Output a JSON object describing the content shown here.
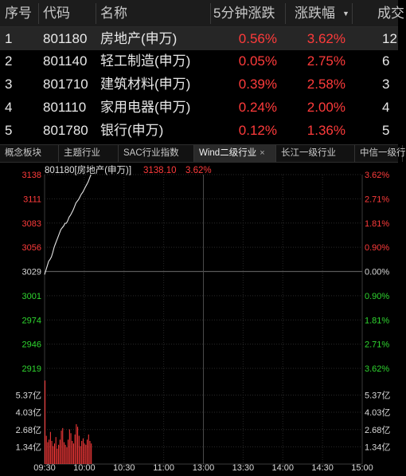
{
  "table": {
    "headers": {
      "index": "序号",
      "code": "代码",
      "name": "名称",
      "chg5": "5分钟涨跌",
      "pct": "涨跌幅",
      "clipped": "成交"
    },
    "rows": [
      {
        "index": "1",
        "code": "801180",
        "name": "房地产(申万)",
        "chg5": "0.56%",
        "pct": "3.62%",
        "clipped": "12",
        "selected": true
      },
      {
        "index": "2",
        "code": "801140",
        "name": "轻工制造(申万)",
        "chg5": "0.05%",
        "pct": "2.75%",
        "clipped": "6"
      },
      {
        "index": "3",
        "code": "801710",
        "name": "建筑材料(申万)",
        "chg5": "0.39%",
        "pct": "2.58%",
        "clipped": "3"
      },
      {
        "index": "4",
        "code": "801110",
        "name": "家用电器(申万)",
        "chg5": "0.24%",
        "pct": "2.00%",
        "clipped": "4"
      },
      {
        "index": "5",
        "code": "801780",
        "name": "银行(申万)",
        "chg5": "0.12%",
        "pct": "1.36%",
        "clipped": "5"
      }
    ]
  },
  "tabs": [
    {
      "label": "概念板块"
    },
    {
      "label": "主题行业"
    },
    {
      "label": "SAC行业指数"
    },
    {
      "label": "Wind二级行业",
      "active": true,
      "close": "×"
    },
    {
      "label": "长江一级行业"
    },
    {
      "label": "中信一级行"
    }
  ],
  "legend": {
    "series": "801180[房地产(申万)]",
    "price": "3138.10",
    "pct": "3.62%"
  },
  "colors": {
    "up": "#ff3b3b",
    "down": "#2fd62f",
    "neutral": "#d8d8d8",
    "price_line": "#e6e6e6",
    "grid": "#3a3a3a"
  },
  "chart_data": {
    "type": "line",
    "price_axis": {
      "ylim": [
        2919,
        3138
      ],
      "left_ticks": [
        "3138",
        "3111",
        "3083",
        "3056",
        "3029",
        "3001",
        "2974",
        "2946",
        "2919"
      ],
      "right_ticks": [
        "3.62%",
        "2.71%",
        "1.81%",
        "0.90%",
        "0.00%",
        "0.90%",
        "1.81%",
        "2.71%",
        "3.62%"
      ],
      "base": 3029
    },
    "volume_axis": {
      "ticks": [
        "5.37亿",
        "4.03亿",
        "2.68亿",
        "1.34亿"
      ],
      "ylim": [
        0,
        6.7
      ]
    },
    "x_ticks": [
      "09:30",
      "10:00",
      "10:30",
      "11:00",
      "13:00",
      "13:30",
      "14:00",
      "14:30",
      "15:00"
    ],
    "series": [
      {
        "values": [
          3025,
          3030,
          3035,
          3040,
          3042,
          3045,
          3050,
          3056,
          3060,
          3064,
          3068,
          3072,
          3076,
          3078,
          3080,
          3083,
          3083,
          3086,
          3090,
          3092,
          3095,
          3098,
          3102,
          3106,
          3108,
          3110,
          3113,
          3116,
          3118,
          3121,
          3124,
          3127,
          3130,
          3134,
          3138
        ]
      }
    ],
    "volume": [
      6.5,
      2.2,
      1.7,
      1.9,
      2.5,
      1.8,
      1.4,
      1.6,
      2.1,
      1.2,
      1.5,
      1.9,
      2.6,
      2.8,
      1.7,
      1.5,
      1.3,
      1.9,
      2.7,
      2.4,
      1.8,
      1.6,
      2.3,
      3.1,
      2.9,
      2.2,
      1.4,
      1.8,
      2.0,
      1.6,
      1.5,
      1.9,
      2.3,
      1.8,
      1.6
    ]
  }
}
